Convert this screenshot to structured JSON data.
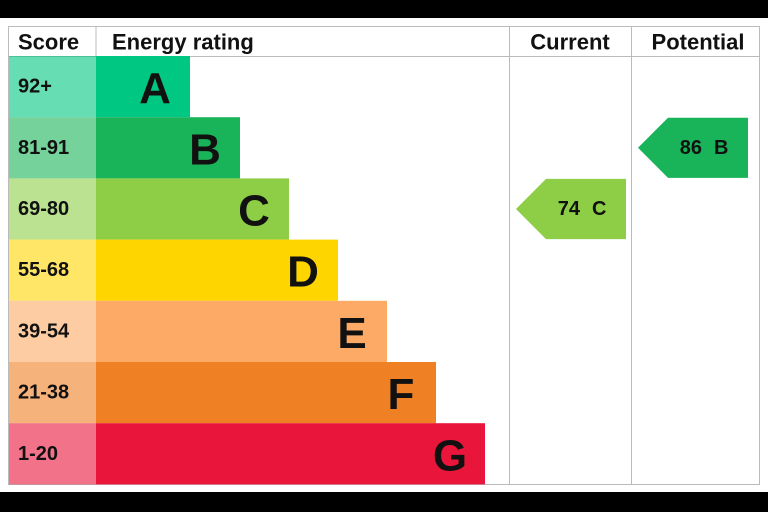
{
  "header": {
    "score": "Score",
    "energy_rating": "Energy rating",
    "current": "Current",
    "potential": "Potential"
  },
  "bands": [
    {
      "score": "92+",
      "letter": "A",
      "color": "#00c781"
    },
    {
      "score": "81-91",
      "letter": "B",
      "color": "#19b459"
    },
    {
      "score": "69-80",
      "letter": "C",
      "color": "#8dce46"
    },
    {
      "score": "55-68",
      "letter": "D",
      "color": "#ffd500"
    },
    {
      "score": "39-54",
      "letter": "E",
      "color": "#fcaa65"
    },
    {
      "score": "21-38",
      "letter": "F",
      "color": "#ef8023"
    },
    {
      "score": "1-20",
      "letter": "G",
      "color": "#e9153b"
    }
  ],
  "current": {
    "value": 74,
    "letter": "C"
  },
  "potential": {
    "value": 86,
    "letter": "B"
  }
}
